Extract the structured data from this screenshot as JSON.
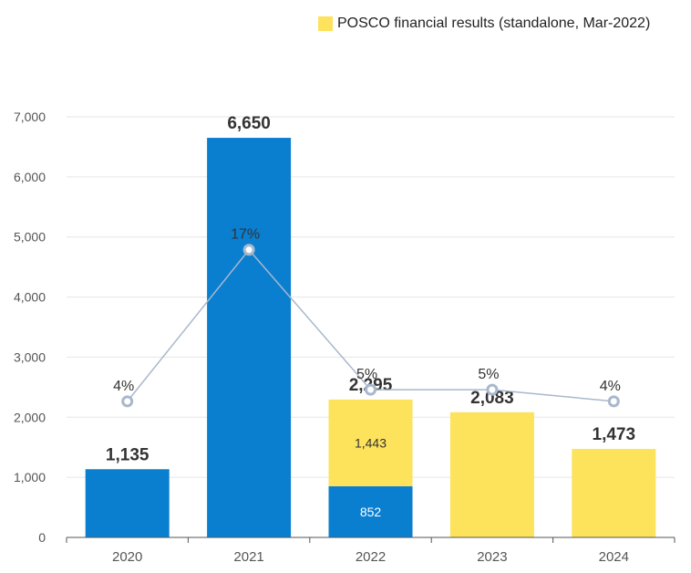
{
  "chart_data": {
    "type": "bar",
    "title": "",
    "xlabel": "",
    "ylabel": "",
    "categories": [
      "2020",
      "2021",
      "2022",
      "2023",
      "2024"
    ],
    "ylim": [
      0,
      7000
    ],
    "yticks": [
      0,
      1000,
      2000,
      3000,
      4000,
      5000,
      6000,
      7000
    ],
    "ytick_labels": [
      "0",
      "1,000",
      "2,000",
      "3,000",
      "4,000",
      "5,000",
      "6,000",
      "7,000"
    ],
    "stacked": true,
    "grid": true,
    "legend_position": "top-right",
    "series": [
      {
        "values": [
          1135,
          6650,
          852,
          0,
          0
        ],
        "color": "#0a7fd0",
        "segment_labels": [
          "",
          "",
          "852",
          "",
          ""
        ]
      },
      {
        "name": "POSCO financial results (standalone, Mar-2022)",
        "values": [
          0,
          0,
          1443,
          2083,
          1473
        ],
        "color": "#fde25c",
        "segment_labels": [
          "",
          "",
          "1,443",
          "",
          ""
        ]
      }
    ],
    "total_labels": [
      "1,135",
      "6,650",
      "2,295",
      "2,083",
      "1,473"
    ],
    "line_overlay": {
      "type": "line",
      "values": [
        4,
        17,
        5,
        5,
        4
      ],
      "unit": "%",
      "labels": [
        "4%",
        "17%",
        "5%",
        "5%",
        "4%"
      ],
      "color": "#a9b8cc"
    }
  }
}
